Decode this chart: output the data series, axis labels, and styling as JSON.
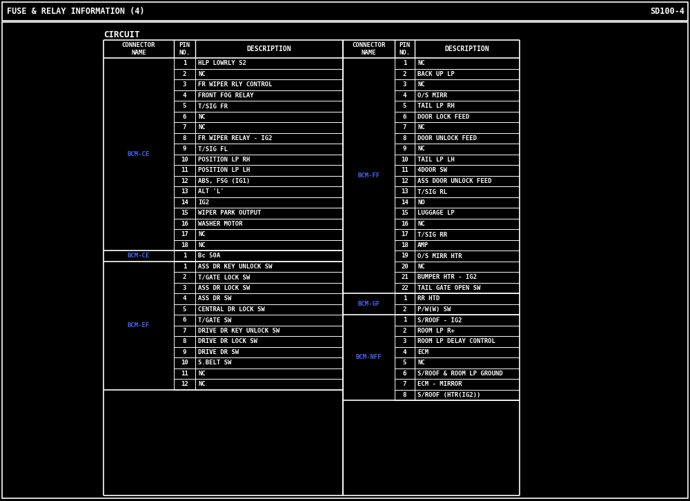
{
  "title_left": "FUSE & RELAY INFORMATION (4)",
  "title_right": "SD100-4",
  "section_title": "CIRCUIT",
  "bg_color": "#000000",
  "text_color": "#ffffff",
  "blue_color": "#4466ff",
  "left_sections": [
    {
      "connector": "BCM-CE",
      "rows": [
        [
          "1",
          "HLP LOWRLY S2"
        ],
        [
          "2",
          "NC"
        ],
        [
          "3",
          "FR WIPER RLY CONTROL"
        ],
        [
          "4",
          "FRONT FOG RELAY"
        ],
        [
          "5",
          "T/SIG FR"
        ],
        [
          "6",
          "NC"
        ],
        [
          "7",
          "NC"
        ],
        [
          "8",
          "FR WIPER RELAY - IG2"
        ],
        [
          "9",
          "T/SIG FL"
        ],
        [
          "10",
          "POSITION LP RH"
        ],
        [
          "11",
          "POSITION LP LH"
        ],
        [
          "12",
          "ABS, FSG (IG1)"
        ],
        [
          "13",
          "ALT 'L'"
        ],
        [
          "14",
          "IG2"
        ],
        [
          "15",
          "WIPER PARK OUTPUT"
        ],
        [
          "16",
          "WASHER MOTOR"
        ],
        [
          "17",
          "NC"
        ],
        [
          "18",
          "NC"
        ]
      ]
    },
    {
      "connector": "BCM-CE",
      "single_row": [
        "1",
        "Bc 50A"
      ]
    },
    {
      "connector": "BCM-EF",
      "rows": [
        [
          "1",
          "ASS DR KEY UNLOCK SW"
        ],
        [
          "2",
          "T/GATE LOCK SW"
        ],
        [
          "3",
          "ASS DR LOCK SW"
        ],
        [
          "4",
          "ASS DR SW"
        ],
        [
          "5",
          "CENTRAL DR LOCK SW"
        ],
        [
          "6",
          "T/GATE SW"
        ],
        [
          "7",
          "DRIVE DR KEY UNLOCK SW"
        ],
        [
          "8",
          "DRIVE DR LOCK SW"
        ],
        [
          "9",
          "DRIVE DR SW"
        ],
        [
          "10",
          "S.BELT SW"
        ],
        [
          "11",
          "NC"
        ],
        [
          "12",
          "NC"
        ]
      ]
    }
  ],
  "right_sections": [
    {
      "connector": "BCM-FF",
      "rows": [
        [
          "1",
          "NC"
        ],
        [
          "2",
          "BACK UP LP"
        ],
        [
          "3",
          "NC"
        ],
        [
          "4",
          "O/S MIRR"
        ],
        [
          "5",
          "TAIL LP RH"
        ],
        [
          "6",
          "DOOR LOCK FEED"
        ],
        [
          "7",
          "NC"
        ],
        [
          "8",
          "DOOR UNLOCK FEED"
        ],
        [
          "9",
          "NC"
        ],
        [
          "10",
          "TAIL LP LH"
        ],
        [
          "11",
          "4DOOR SW"
        ],
        [
          "12",
          "ASS DOOR UNLOCK FEED"
        ],
        [
          "13",
          "T/SIG RL"
        ],
        [
          "14",
          "NO"
        ],
        [
          "15",
          "LUGGAGE LP"
        ],
        [
          "16",
          "NC"
        ],
        [
          "17",
          "T/SIG RR"
        ],
        [
          "18",
          "AMP"
        ],
        [
          "19",
          "O/S MIRR HTR"
        ],
        [
          "20",
          "NC"
        ],
        [
          "21",
          "BUMPER HTR - IG2"
        ],
        [
          "22",
          "TAIL GATE OPEN SW"
        ]
      ]
    },
    {
      "connector": "BCM-GF",
      "rows": [
        [
          "1",
          "RR HTD"
        ],
        [
          "2",
          "P/W(W) SW"
        ]
      ]
    },
    {
      "connector": "BCM-NFF",
      "rows": [
        [
          "1",
          "S/ROOF - IG2"
        ],
        [
          "2",
          "ROOM LP R+"
        ],
        [
          "3",
          "ROOM LP DELAY CONTROL"
        ],
        [
          "4",
          "ECM"
        ],
        [
          "5",
          "NC"
        ],
        [
          "6",
          "S/ROOF & ROOM LP GROUND"
        ],
        [
          "7",
          "ECM - MIRROR"
        ],
        [
          "8",
          "S/ROOF (HTR(IG2))"
        ]
      ]
    }
  ]
}
